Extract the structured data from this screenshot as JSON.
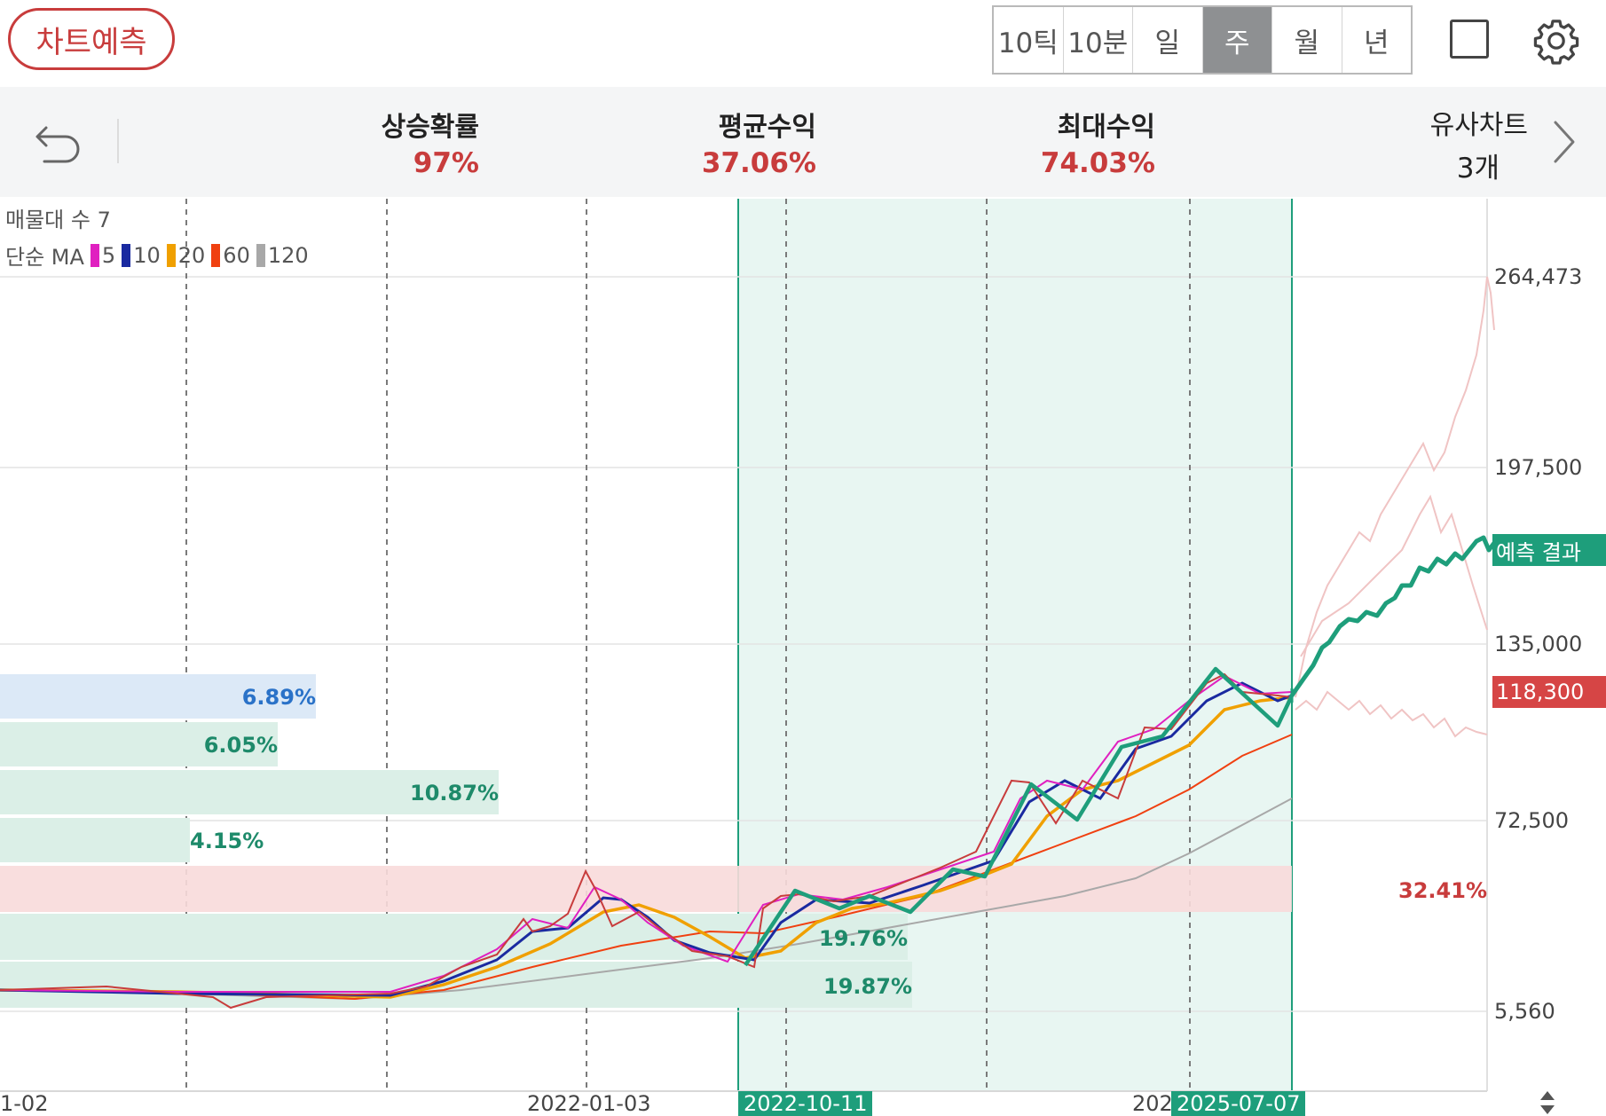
{
  "header": {
    "predict_button": "차트예측",
    "periods": [
      "10틱",
      "10분",
      "일",
      "주",
      "월",
      "년"
    ],
    "active_period": "주"
  },
  "stats": {
    "rise_probability": {
      "label": "상승확률",
      "value": "97%"
    },
    "avg_return": {
      "label": "평균수익",
      "value": "37.06%"
    },
    "max_return": {
      "label": "최대수익",
      "value": "74.03%"
    },
    "similar_charts": {
      "label": "유사차트",
      "value": "3개"
    }
  },
  "legend": {
    "volume_profile": "매물대 수 7",
    "ma_type": "단순 MA",
    "ma_periods": [
      {
        "period": "5",
        "color": "#e020c0"
      },
      {
        "period": "10",
        "color": "#1a2aa0"
      },
      {
        "period": "20",
        "color": "#f0a000"
      },
      {
        "period": "60",
        "color": "#f04010"
      },
      {
        "period": "120",
        "color": "#a8a8a8"
      }
    ]
  },
  "y_axis": {
    "ticks": [
      "264,473",
      "197,500",
      "135,000",
      "72,500",
      "5,560"
    ],
    "current_price": "118,300",
    "prediction_label": "예측 결과"
  },
  "x_axis": {
    "labels": [
      "1-02",
      "2022-01-03",
      "202"
    ],
    "highlight_start": "2022-10-11",
    "highlight_end": "2025-07-07"
  },
  "volume_profile": {
    "bars": [
      "6.89%",
      "6.05%",
      "10.87%",
      "4.15%",
      "32.41%",
      "19.76%",
      "19.87%"
    ]
  },
  "colors": {
    "accent_red": "#c83c3c",
    "accent_green": "#1e9e7b",
    "highlight_fill": "#e8f6f2"
  }
}
